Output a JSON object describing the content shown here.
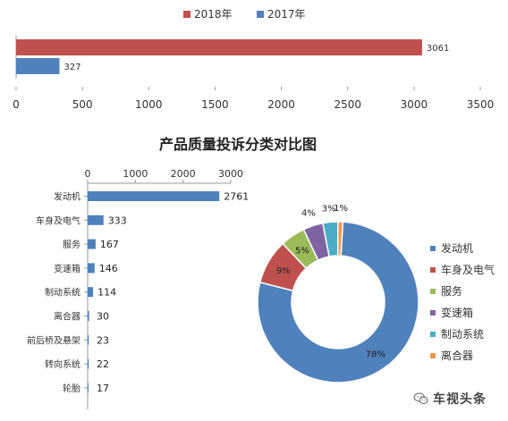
{
  "chart_data": [
    {
      "type": "bar",
      "orientation": "horizontal",
      "title": "",
      "series": [
        {
          "name": "2018年",
          "color": "#c0504d",
          "values": [
            3061
          ]
        },
        {
          "name": "2017年",
          "color": "#4f81bd",
          "values": [
            327
          ]
        }
      ],
      "data_labels": [
        "3061",
        "327"
      ],
      "xlim": [
        0,
        3500
      ],
      "x_ticks": [
        "0",
        "500",
        "1000",
        "1500",
        "2000",
        "2500",
        "3000",
        "3500"
      ],
      "legend_position": "top",
      "grid": false
    },
    {
      "type": "bar",
      "orientation": "horizontal",
      "title": "产品质量投诉分类对比图",
      "categories": [
        "发动机",
        "车身及电气",
        "服务",
        "变速箱",
        "制动系统",
        "离合器",
        "前后桥及悬架",
        "转向系统",
        "轮胎"
      ],
      "values": [
        2761,
        333,
        167,
        146,
        114,
        30,
        23,
        22,
        17
      ],
      "data_labels": [
        "2761",
        "333",
        "167",
        "146",
        "114",
        "30",
        "23",
        "22",
        "17"
      ],
      "xlim": [
        0,
        3000
      ],
      "x_ticks": [
        "0",
        "1000",
        "2000",
        "3000"
      ],
      "axis_position": "top",
      "color": "#4f81bd",
      "grid": false
    },
    {
      "type": "pie",
      "style": "donut",
      "labels": [
        "发动机",
        "车身及电气",
        "服务",
        "变速箱",
        "制动系统",
        "离合器"
      ],
      "values": [
        78,
        9,
        5,
        4,
        3,
        1
      ],
      "data_labels": [
        "78%",
        "9%",
        "5%",
        "4%",
        "3%",
        "1%"
      ],
      "colors": [
        "#4f81bd",
        "#c0504d",
        "#9bbb59",
        "#8064a2",
        "#4bacc6",
        "#f79646"
      ],
      "legend_position": "right"
    }
  ],
  "watermark": {
    "text": "车视头条",
    "icon": "wechat-icon"
  }
}
